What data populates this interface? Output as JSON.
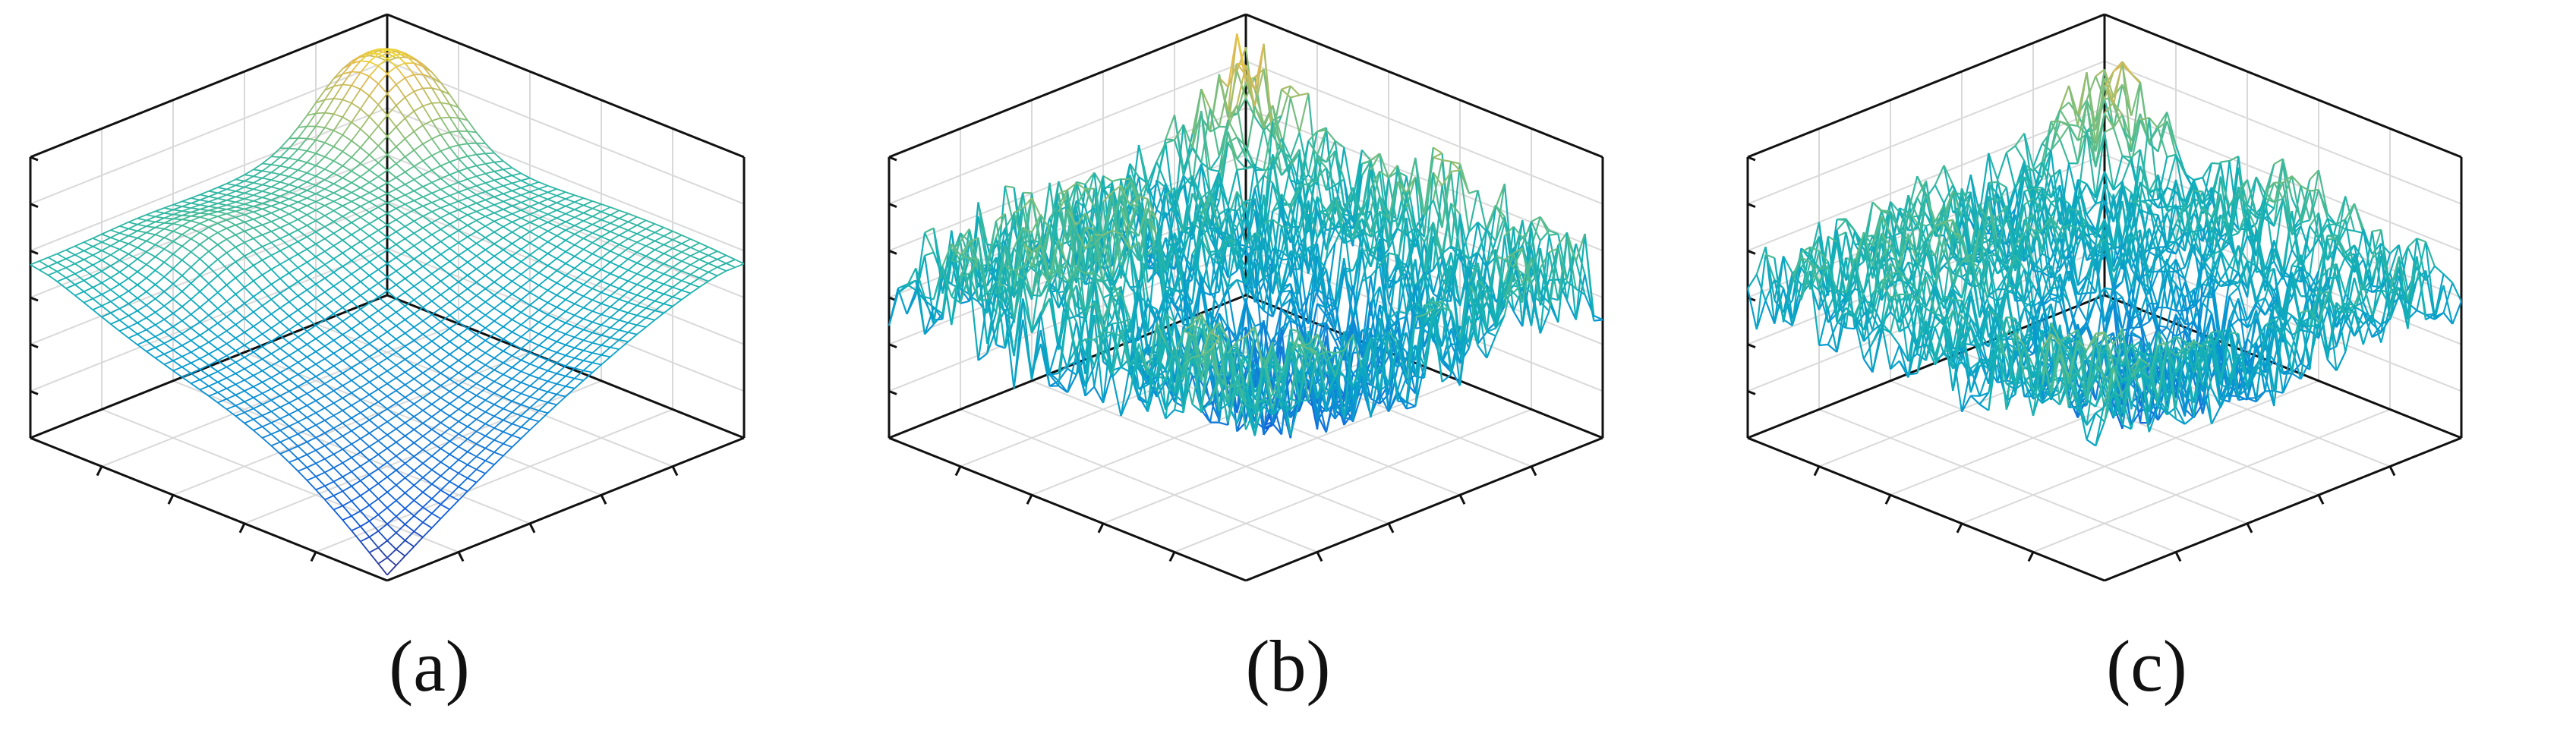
{
  "figure": {
    "background": "#ffffff",
    "axis_color": "#111111",
    "grid_color": "#d9d9d9",
    "colormap": "parula"
  },
  "chart_data": [
    {
      "type": "mesh3d",
      "caption": "(a)",
      "surface": "smooth",
      "grid_size": 41,
      "zlim": [
        0,
        1
      ],
      "grid": true,
      "tick_labels": false,
      "features": [
        {
          "kind": "base_plane",
          "level": 0.62
        },
        {
          "kind": "slope_toward_front_corner",
          "min_value": 0.02
        },
        {
          "kind": "ridge_back",
          "peak_value": 0.95
        }
      ]
    },
    {
      "type": "mesh3d",
      "caption": "(b)",
      "surface": "noisy",
      "grid_size": 41,
      "zlim": [
        0,
        1
      ],
      "grid": true,
      "tick_labels": false,
      "features": [
        {
          "kind": "base_plane",
          "level": 0.55
        },
        {
          "kind": "random_roughness",
          "amplitude": 0.35
        },
        {
          "kind": "peak_back",
          "peak_value": 0.9
        }
      ]
    },
    {
      "type": "mesh3d",
      "caption": "(c)",
      "surface": "noisy",
      "grid_size": 41,
      "zlim": [
        0,
        1
      ],
      "grid": true,
      "tick_labels": false,
      "features": [
        {
          "kind": "base_plane",
          "level": 0.55
        },
        {
          "kind": "random_roughness",
          "amplitude": 0.3
        },
        {
          "kind": "peak_back",
          "peak_value": 0.85
        }
      ]
    }
  ]
}
